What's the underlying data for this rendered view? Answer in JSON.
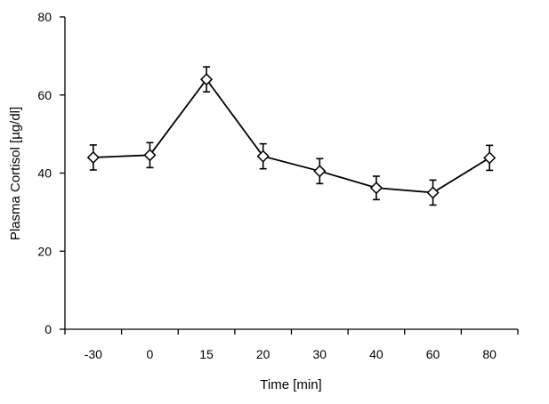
{
  "chart_data": {
    "type": "line",
    "title": "",
    "xlabel": "Time [min]",
    "ylabel": "Plasma Cortisol [µg/dl]",
    "categories": [
      "-30",
      "0",
      "15",
      "20",
      "30",
      "40",
      "60",
      "80"
    ],
    "values": [
      44.0,
      44.6,
      64.0,
      44.3,
      40.5,
      36.2,
      35.0,
      43.9
    ],
    "error": [
      3.2,
      3.2,
      3.2,
      3.2,
      3.2,
      3.0,
      3.2,
      3.2
    ],
    "ylim": [
      0,
      80
    ],
    "yticks": [
      "0",
      "20",
      "40",
      "60",
      "80"
    ],
    "marker": "diamond-open",
    "grid": false,
    "legend": "none",
    "colors": {
      "line": "#000000",
      "marker_fill": "#ffffff"
    }
  }
}
